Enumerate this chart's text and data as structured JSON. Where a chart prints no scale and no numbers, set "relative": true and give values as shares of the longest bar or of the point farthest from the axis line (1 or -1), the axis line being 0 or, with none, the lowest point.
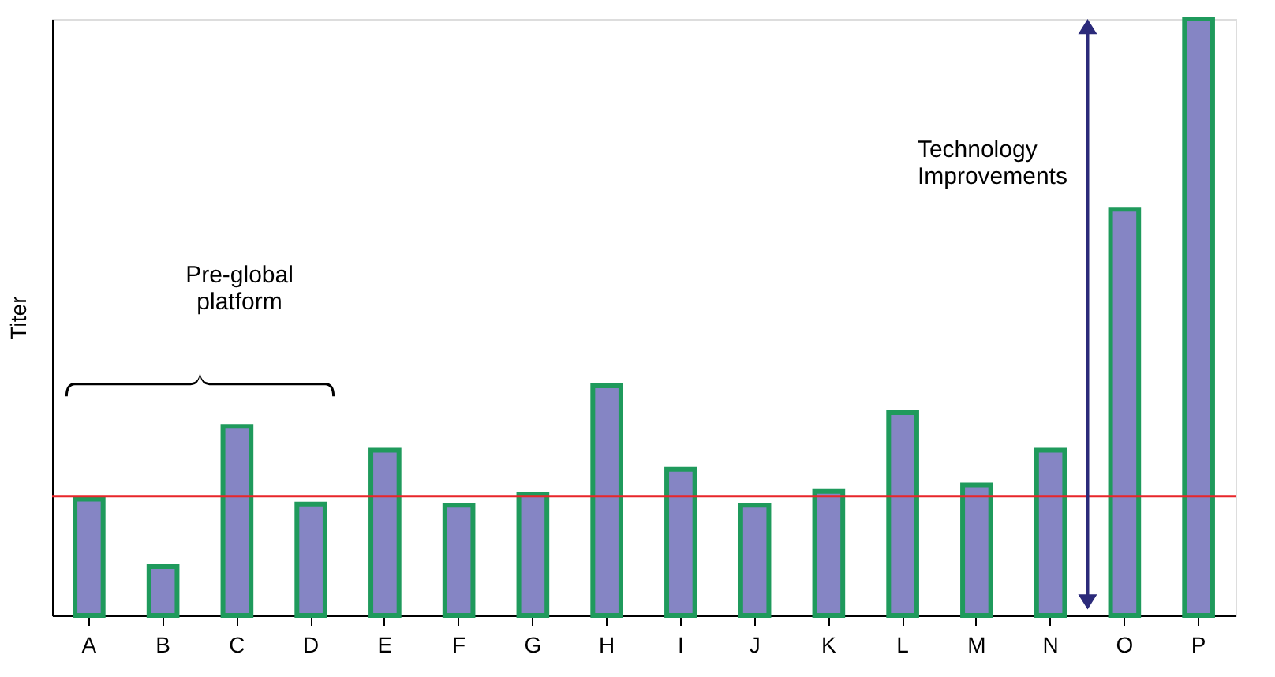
{
  "chart_data": {
    "type": "bar",
    "ylabel": "Titer",
    "relative": true,
    "categories": [
      "A",
      "B",
      "C",
      "D",
      "E",
      "F",
      "G",
      "H",
      "I",
      "J",
      "K",
      "L",
      "M",
      "N",
      "O",
      "P"
    ],
    "values": [
      0.195,
      0.082,
      0.317,
      0.187,
      0.277,
      0.185,
      0.203,
      0.385,
      0.245,
      0.185,
      0.208,
      0.34,
      0.219,
      0.277,
      0.681,
      1
    ],
    "color": "#8585c4",
    "ref_lines": [
      {
        "axis": "y",
        "value": 0.2,
        "color": "#e8262a"
      }
    ],
    "annotations": [
      "Pre-global platform",
      "Technology Improvements"
    ],
    "grid": false,
    "legend": false
  }
}
